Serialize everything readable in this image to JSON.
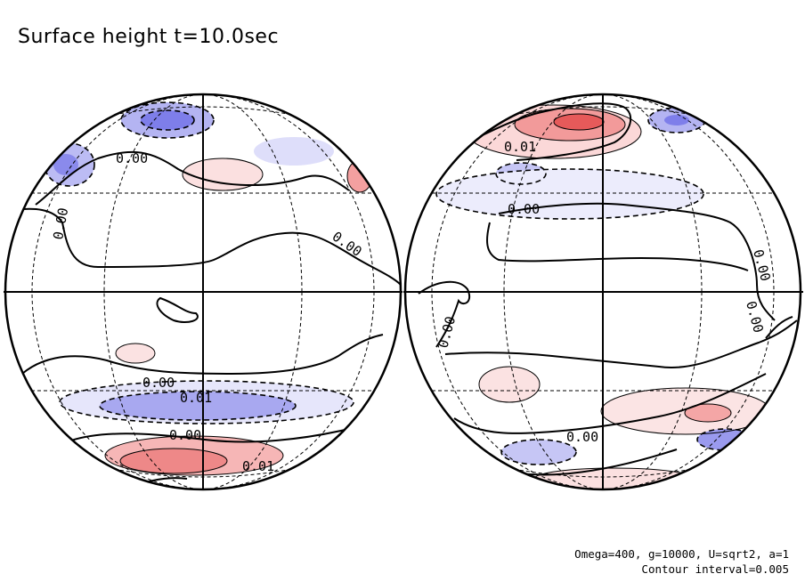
{
  "chart_data": {
    "type": "contour",
    "title": "Surface height t=10.0sec",
    "projection": "orthographic",
    "views": [
      "front hemisphere",
      "back hemisphere"
    ],
    "contour_interval": 0.005,
    "parameters": "Omega=400, g=10000, U=sqrt2, a=1",
    "footer_interval_text": "Contour interval=0.005",
    "colors": {
      "positive": "#ee4a4a",
      "negative": "#4a4aee",
      "zero_line": "#000000"
    },
    "globes": [
      {
        "name": "left-globe",
        "contour_labels": [
          "0.00",
          "0.00",
          "0.00",
          "0.00",
          "0.01",
          "0.00",
          "0.01"
        ]
      },
      {
        "name": "right-globe",
        "contour_labels": [
          "0.01",
          "0.00",
          "0.00",
          "0.00",
          "0.00",
          "0.00"
        ]
      }
    ]
  }
}
